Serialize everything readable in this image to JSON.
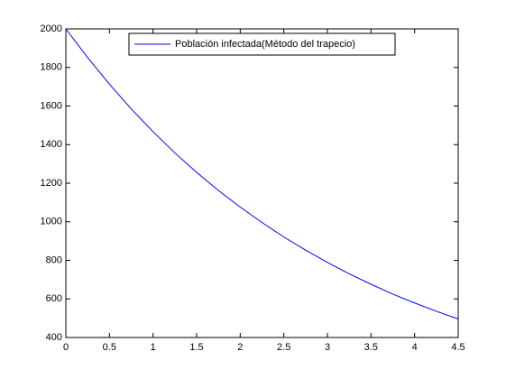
{
  "chart_data": {
    "type": "line",
    "x": [
      0,
      0.25,
      0.5,
      0.75,
      1,
      1.25,
      1.5,
      1.75,
      2,
      2.25,
      2.5,
      2.75,
      3,
      3.25,
      3.5,
      3.75,
      4,
      4.25,
      4.5
    ],
    "series": [
      {
        "name": "Población infectada(Método del trapecio)",
        "color": "#0000ff",
        "values": [
          2000,
          1851,
          1713,
          1585,
          1467,
          1357,
          1256,
          1162,
          1076,
          996,
          921,
          853,
          789,
          730,
          676,
          625,
          579,
          536,
          496
        ]
      }
    ],
    "xlim": [
      0,
      4.5
    ],
    "xticks": [
      0,
      0.5,
      1,
      1.5,
      2,
      2.5,
      3,
      3.5,
      4,
      4.5
    ],
    "ylim": [
      400,
      2000
    ],
    "yticks": [
      400,
      600,
      800,
      1000,
      1200,
      1400,
      1600,
      1800,
      2000
    ],
    "legend": "north",
    "grid": false
  }
}
